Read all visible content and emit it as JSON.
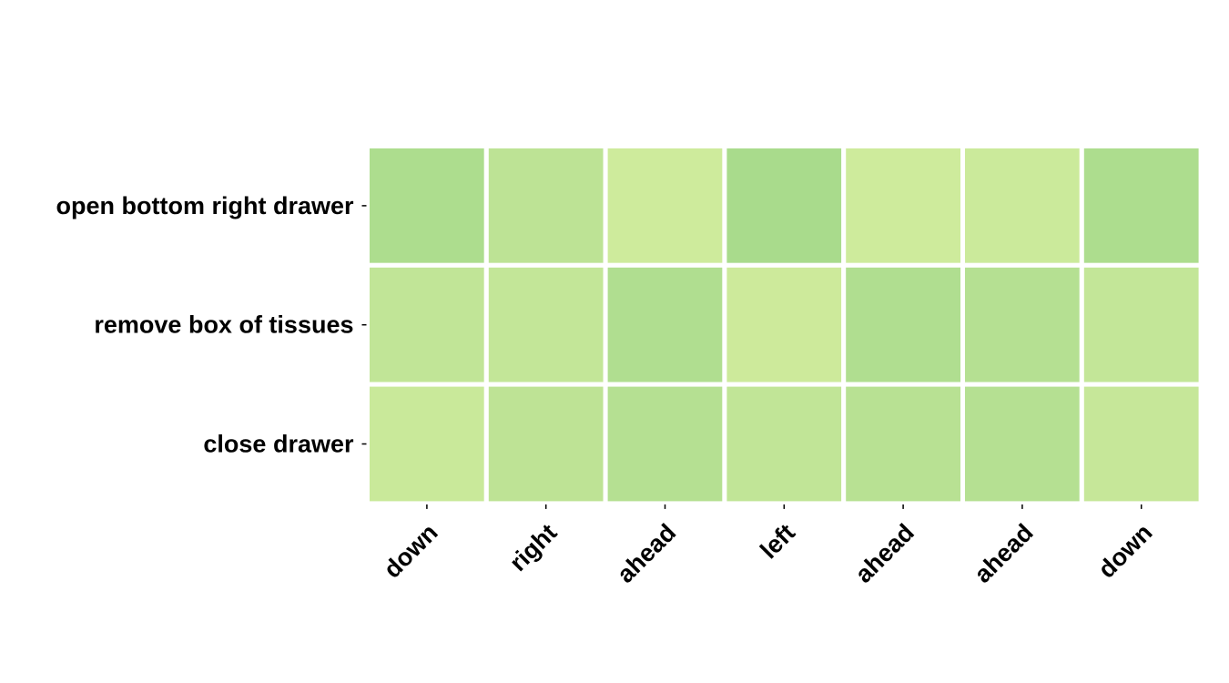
{
  "chart_data": {
    "type": "heatmap",
    "title": "",
    "xlabel": "",
    "ylabel": "",
    "rows": [
      "open bottom right drawer",
      "remove box of tissues",
      "close drawer"
    ],
    "columns": [
      "down",
      "right",
      "ahead",
      "left",
      "ahead",
      "ahead",
      "down"
    ],
    "cell_colors": [
      [
        "#addd8e",
        "#bde395",
        "#ceeb9c",
        "#a9db8c",
        "#ceeb9c",
        "#cbea9b",
        "#addd8e"
      ],
      [
        "#c1e597",
        "#c3e698",
        "#b0de90",
        "#cdea9b",
        "#b0de90",
        "#b5e092",
        "#c3e698"
      ],
      [
        "#c9e99a",
        "#bee395",
        "#b5e092",
        "#c1e597",
        "#b8e193",
        "#b5e092",
        "#c6e799"
      ]
    ],
    "colormap": "YlGn",
    "grid": false,
    "legend": "none"
  }
}
